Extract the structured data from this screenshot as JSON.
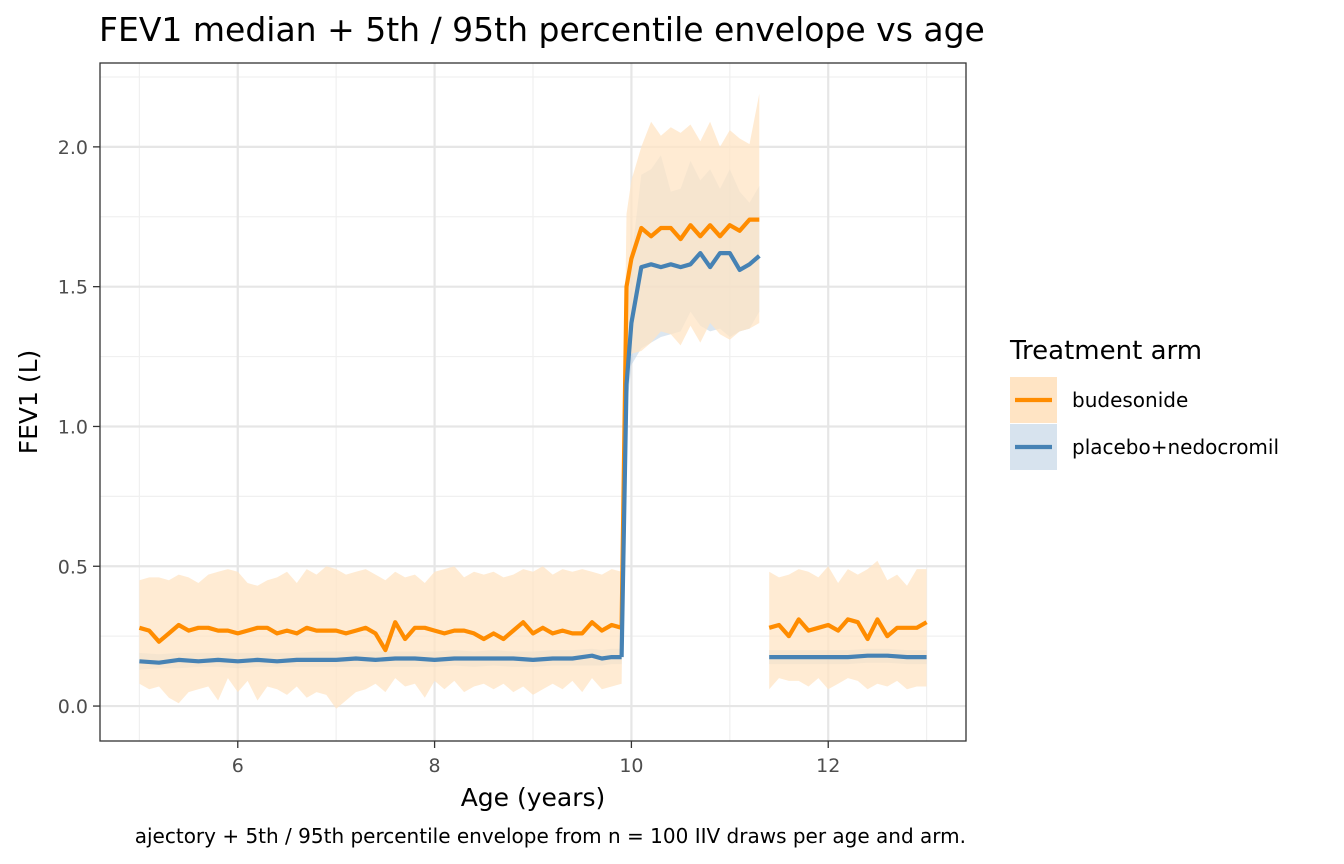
{
  "chart_data": {
    "type": "line",
    "title": "FEV1 median + 5th / 95th percentile envelope vs age",
    "xlabel": "Age (years)",
    "ylabel": "FEV1 (L)",
    "caption": "ajectory + 5th / 95th percentile envelope from n = 100 IIV draws per age and arm.",
    "xlim": [
      4.6,
      13.4
    ],
    "ylim": [
      -0.125,
      2.3
    ],
    "x_ticks": [
      6,
      8,
      10,
      12
    ],
    "x_tick_labels": [
      "6",
      "8",
      "10",
      "12"
    ],
    "y_ticks": [
      0,
      0.5,
      1,
      1.5,
      2
    ],
    "y_tick_labels": [
      "0.0",
      "0.5",
      "1.0",
      "1.5",
      "2.0"
    ],
    "grid": true,
    "legend_title": "Treatment arm",
    "legend_position": "right",
    "series": [
      {
        "name": "budesonide",
        "color": "#ff8c00",
        "ribbon_color": "#ffe4c4",
        "segments": [
          {
            "x": [
              5.0,
              5.1,
              5.2,
              5.3,
              5.4,
              5.5,
              5.6,
              5.7,
              5.8,
              5.9,
              6.0,
              6.1,
              6.2,
              6.3,
              6.4,
              6.5,
              6.6,
              6.7,
              6.8,
              6.9,
              7.0,
              7.1,
              7.2,
              7.3,
              7.4,
              7.5,
              7.6,
              7.7,
              7.8,
              7.9,
              8.0,
              8.1,
              8.2,
              8.3,
              8.4,
              8.5,
              8.6,
              8.7,
              8.8,
              8.9,
              9.0,
              9.1,
              9.2,
              9.3,
              9.4,
              9.5,
              9.6,
              9.7,
              9.8,
              9.9
            ],
            "median": [
              0.28,
              0.27,
              0.23,
              0.26,
              0.29,
              0.27,
              0.28,
              0.28,
              0.27,
              0.27,
              0.26,
              0.27,
              0.28,
              0.28,
              0.26,
              0.27,
              0.26,
              0.28,
              0.27,
              0.27,
              0.27,
              0.26,
              0.27,
              0.28,
              0.26,
              0.2,
              0.3,
              0.24,
              0.28,
              0.28,
              0.27,
              0.26,
              0.27,
              0.27,
              0.26,
              0.24,
              0.26,
              0.24,
              0.27,
              0.3,
              0.26,
              0.28,
              0.26,
              0.27,
              0.26,
              0.26,
              0.3,
              0.27,
              0.29,
              0.28
            ],
            "p5": [
              0.08,
              0.06,
              0.07,
              0.03,
              0.01,
              0.05,
              0.06,
              0.07,
              0.02,
              0.1,
              0.05,
              0.09,
              0.02,
              0.07,
              0.06,
              0.04,
              0.07,
              0.03,
              0.05,
              0.04,
              -0.01,
              0.02,
              0.05,
              0.06,
              0.08,
              0.05,
              0.1,
              0.07,
              0.08,
              0.03,
              0.09,
              0.06,
              0.09,
              0.05,
              0.07,
              0.08,
              0.06,
              0.08,
              0.05,
              0.07,
              0.04,
              0.06,
              0.08,
              0.06,
              0.09,
              0.05,
              0.1,
              0.06,
              0.07,
              0.08
            ],
            "p95": [
              0.45,
              0.46,
              0.46,
              0.45,
              0.47,
              0.46,
              0.44,
              0.47,
              0.48,
              0.49,
              0.48,
              0.44,
              0.43,
              0.45,
              0.46,
              0.48,
              0.44,
              0.49,
              0.47,
              0.5,
              0.49,
              0.47,
              0.48,
              0.49,
              0.47,
              0.45,
              0.48,
              0.46,
              0.47,
              0.44,
              0.48,
              0.49,
              0.5,
              0.46,
              0.48,
              0.47,
              0.48,
              0.46,
              0.47,
              0.49,
              0.48,
              0.5,
              0.47,
              0.49,
              0.48,
              0.49,
              0.48,
              0.47,
              0.49,
              0.48
            ]
          },
          {
            "x": [
              9.9,
              9.95,
              10.0,
              10.1,
              10.2,
              10.3,
              10.4,
              10.5,
              10.6,
              10.7,
              10.8,
              10.9,
              11.0,
              11.1,
              11.2,
              11.3
            ],
            "median": [
              0.28,
              1.5,
              1.6,
              1.71,
              1.68,
              1.71,
              1.71,
              1.67,
              1.72,
              1.68,
              1.72,
              1.68,
              1.72,
              1.7,
              1.74,
              1.74
            ],
            "p5": [
              0.08,
              1.2,
              1.26,
              1.27,
              1.3,
              1.34,
              1.33,
              1.29,
              1.36,
              1.3,
              1.37,
              1.33,
              1.31,
              1.34,
              1.35,
              1.37
            ],
            "p95": [
              0.48,
              1.76,
              1.88,
              2.0,
              2.09,
              2.04,
              2.07,
              2.05,
              2.08,
              2.02,
              2.09,
              2.0,
              2.06,
              2.03,
              2.01,
              2.19
            ]
          },
          {
            "x": [
              11.4,
              11.5,
              11.6,
              11.7,
              11.8,
              11.9,
              12.0,
              12.1,
              12.2,
              12.3,
              12.4,
              12.5,
              12.6,
              12.7,
              12.8,
              12.9,
              13.0
            ],
            "median": [
              0.28,
              0.29,
              0.25,
              0.31,
              0.27,
              0.28,
              0.29,
              0.27,
              0.31,
              0.3,
              0.24,
              0.31,
              0.25,
              0.28,
              0.28,
              0.28,
              0.3
            ],
            "p5": [
              0.06,
              0.1,
              0.09,
              0.09,
              0.07,
              0.1,
              0.06,
              0.08,
              0.1,
              0.09,
              0.06,
              0.08,
              0.07,
              0.09,
              0.06,
              0.07,
              0.07
            ],
            "p95": [
              0.48,
              0.46,
              0.47,
              0.49,
              0.48,
              0.46,
              0.5,
              0.44,
              0.49,
              0.47,
              0.49,
              0.52,
              0.45,
              0.47,
              0.43,
              0.49,
              0.49
            ]
          }
        ]
      },
      {
        "name": "placebo+nedocromil",
        "color": "#4682b4",
        "ribbon_color": "#d7e3ee",
        "segments": [
          {
            "x": [
              5.0,
              5.2,
              5.4,
              5.6,
              5.8,
              6.0,
              6.2,
              6.4,
              6.6,
              6.8,
              7.0,
              7.2,
              7.4,
              7.6,
              7.8,
              8.0,
              8.2,
              8.4,
              8.6,
              8.8,
              9.0,
              9.2,
              9.4,
              9.6,
              9.7,
              9.8,
              9.9
            ],
            "median": [
              0.16,
              0.155,
              0.165,
              0.16,
              0.165,
              0.16,
              0.165,
              0.16,
              0.165,
              0.165,
              0.165,
              0.17,
              0.165,
              0.17,
              0.17,
              0.165,
              0.17,
              0.17,
              0.17,
              0.17,
              0.165,
              0.17,
              0.17,
              0.18,
              0.17,
              0.175,
              0.175
            ],
            "p5": [
              0.13,
              0.135,
              0.135,
              0.14,
              0.14,
              0.135,
              0.14,
              0.14,
              0.14,
              0.14,
              0.14,
              0.14,
              0.14,
              0.14,
              0.14,
              0.14,
              0.145,
              0.14,
              0.145,
              0.14,
              0.14,
              0.145,
              0.145,
              0.145,
              0.145,
              0.15,
              0.15
            ],
            "p95": [
              0.19,
              0.185,
              0.19,
              0.19,
              0.19,
              0.19,
              0.19,
              0.19,
              0.19,
              0.195,
              0.195,
              0.195,
              0.195,
              0.195,
              0.195,
              0.195,
              0.2,
              0.195,
              0.2,
              0.195,
              0.195,
              0.2,
              0.2,
              0.205,
              0.2,
              0.205,
              0.205
            ]
          },
          {
            "x": [
              9.9,
              9.95,
              10.0,
              10.1,
              10.2,
              10.3,
              10.4,
              10.5,
              10.6,
              10.7,
              10.8,
              10.9,
              11.0,
              11.1,
              11.2,
              11.3
            ],
            "median": [
              0.175,
              1.15,
              1.37,
              1.57,
              1.58,
              1.57,
              1.58,
              1.57,
              1.58,
              1.62,
              1.57,
              1.62,
              1.62,
              1.56,
              1.58,
              1.61
            ],
            "p5": [
              0.15,
              1.05,
              1.22,
              1.28,
              1.3,
              1.32,
              1.33,
              1.34,
              1.41,
              1.36,
              1.34,
              1.35,
              1.32,
              1.34,
              1.35,
              1.41
            ],
            "p95": [
              0.205,
              1.36,
              1.6,
              1.9,
              1.92,
              1.97,
              1.84,
              1.85,
              1.95,
              1.88,
              1.92,
              1.85,
              1.92,
              1.84,
              1.8,
              1.86
            ]
          },
          {
            "x": [
              11.4,
              11.6,
              11.8,
              12.0,
              12.2,
              12.4,
              12.6,
              12.8,
              13.0
            ],
            "median": [
              0.175,
              0.175,
              0.175,
              0.175,
              0.175,
              0.18,
              0.18,
              0.175,
              0.175
            ],
            "p5": [
              0.15,
              0.15,
              0.15,
              0.15,
              0.15,
              0.155,
              0.155,
              0.15,
              0.15
            ],
            "p95": [
              0.2,
              0.2,
              0.2,
              0.2,
              0.2,
              0.205,
              0.205,
              0.2,
              0.2
            ]
          }
        ]
      }
    ]
  }
}
